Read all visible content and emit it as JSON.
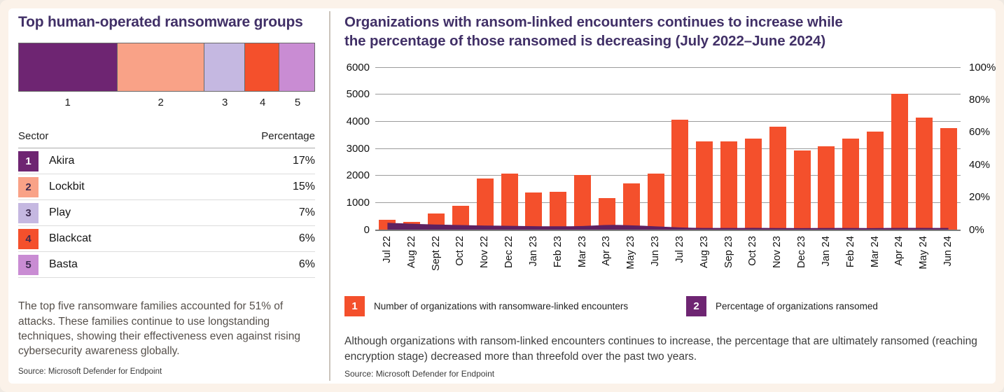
{
  "left_panel": {
    "title": "Top human-operated ransomware groups",
    "table": {
      "col1": "Sector",
      "col2": "Percentage",
      "rows": [
        {
          "rank": "1",
          "name": "Akira",
          "pct": "17%",
          "color": "#6E2572",
          "text_color": "#ffffff"
        },
        {
          "rank": "2",
          "name": "Lockbit",
          "pct": "15%",
          "color": "#F9A287",
          "text_color": "#3D2B50"
        },
        {
          "rank": "3",
          "name": "Play",
          "pct": "7%",
          "color": "#C5B8E1",
          "text_color": "#3D2B50"
        },
        {
          "rank": "4",
          "name": "Blackcat",
          "pct": "6%",
          "color": "#F4502C",
          "text_color": "#3D2B50"
        },
        {
          "rank": "5",
          "name": "Basta",
          "pct": "6%",
          "color": "#C98CD3",
          "text_color": "#3D2B50"
        }
      ]
    },
    "note": "The top five ransomware families accounted for 51% of attacks. These families continue to use longstanding techniques, showing their effectiveness even against rising cybersecurity awareness globally.",
    "source": "Source: Microsoft Defender for Endpoint"
  },
  "right_panel": {
    "title_line1": "Organizations with ransom-linked encounters continues to increase while",
    "title_line2": "the percentage of those ransomed is decreasing (July 2022–June 2024)",
    "legend": [
      {
        "badge": "1",
        "color": "#F4502C",
        "label": "Number of organizations with ransomware-linked encounters"
      },
      {
        "badge": "2",
        "color": "#6E2572",
        "label": "Percentage of organizations ransomed"
      }
    ],
    "caption": "Although organizations with ransom-linked encounters continues to increase, the percentage that are ultimately ransomed (reaching encryption stage) decreased more than threefold over the past two years.",
    "source": "Source: Microsoft Defender for Endpoint"
  },
  "chart_data": [
    {
      "type": "bar",
      "subtype": "horizontal-stacked",
      "title": "Top human-operated ransomware groups",
      "categories": [
        "1",
        "2",
        "3",
        "4",
        "5"
      ],
      "values": [
        17,
        15,
        7,
        6,
        6
      ],
      "labels": [
        "Akira",
        "Lockbit",
        "Play",
        "Blackcat",
        "Basta"
      ],
      "colors": [
        "#6E2572",
        "#F9A287",
        "#C5B8E1",
        "#F4502C",
        "#C98CD3"
      ],
      "unit": "% of attacks"
    },
    {
      "type": "bar",
      "subtype": "combo-bar-area-dual-axis",
      "title": "Organizations with ransom-linked encounters continues to increase while the percentage of those ransomed is decreasing (July 2022–June 2024)",
      "categories": [
        "Jul 22",
        "Aug 22",
        "Sept 22",
        "Oct 22",
        "Nov 22",
        "Dec 22",
        "Jan 23",
        "Feb 23",
        "Mar 23",
        "Apr 23",
        "May 23",
        "Jun 23",
        "Jul 23",
        "Aug 23",
        "Sep 23",
        "Oct 23",
        "Nov 23",
        "Dec 23",
        "Jan 24",
        "Feb 24",
        "Mar 24",
        "Apr 24",
        "May 24",
        "Jun 24"
      ],
      "series": [
        {
          "name": "Number of organizations with ransomware-linked encounters",
          "render": "bar",
          "axis": "left",
          "color": "#F4502C",
          "values": [
            350,
            290,
            600,
            890,
            1900,
            2060,
            1370,
            1390,
            2010,
            1170,
            1710,
            2060,
            4060,
            3260,
            3260,
            3350,
            3790,
            2910,
            3090,
            3370,
            3620,
            5020,
            4150,
            3760
          ]
        },
        {
          "name": "Percentage of organizations ransomed",
          "render": "area",
          "axis": "right",
          "color": "#5E2161",
          "values": [
            4.2,
            3.6,
            3.1,
            2.8,
            2.5,
            2.3,
            2.1,
            2.0,
            2.1,
            3.0,
            2.7,
            2.0,
            1.3,
            1.0,
            1.0,
            1.1,
            1.0,
            0.9,
            1.0,
            1.0,
            0.9,
            1.1,
            1.1,
            1.0
          ]
        }
      ],
      "left_axis": {
        "min": 0,
        "max": 6000,
        "step": 1000
      },
      "right_axis": {
        "min": 0,
        "max": 100,
        "step": 20,
        "unit": "%"
      },
      "grid": true,
      "legend_position": "bottom"
    }
  ]
}
